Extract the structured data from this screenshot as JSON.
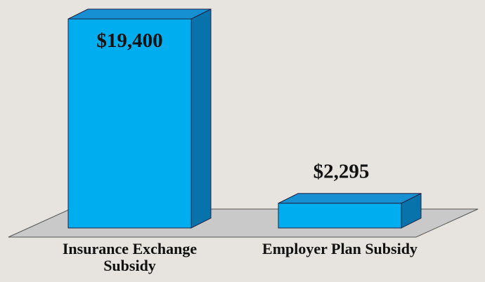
{
  "chart_data": {
    "type": "bar3d",
    "categories": [
      "Insurance Exchange Subsidy",
      "Employer Plan Subsidy"
    ],
    "values": [
      19400,
      2295
    ],
    "value_labels": [
      "$19,400",
      "$2,295"
    ],
    "color": "#00aeef"
  }
}
